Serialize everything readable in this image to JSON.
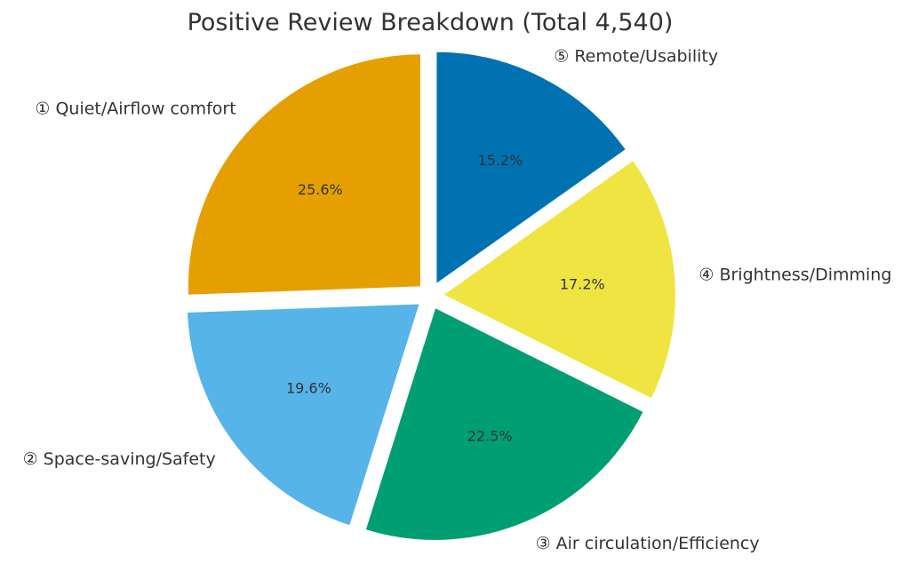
{
  "chart_data": {
    "type": "pie",
    "title": "Positive Review Breakdown (Total 4,540)",
    "slices": [
      {
        "label": "① Quiet/Airflow comfort",
        "value": 25.6,
        "display": "25.6%",
        "color": "#E69F00"
      },
      {
        "label": "② Space-saving/Safety",
        "value": 19.6,
        "display": "19.6%",
        "color": "#56B4E9"
      },
      {
        "label": "③ Air circulation/Efficiency",
        "value": 22.5,
        "display": "22.5%",
        "color": "#009E73"
      },
      {
        "label": "④ Brightness/Dimming",
        "value": 17.2,
        "display": "17.2%",
        "color": "#F0E442"
      },
      {
        "label": "⑤ Remote/Usability",
        "value": 15.2,
        "display": "15.2%",
        "color": "#0072B2"
      }
    ],
    "start_angle_deg": 90,
    "direction": "counterclockwise",
    "exploded": true
  }
}
